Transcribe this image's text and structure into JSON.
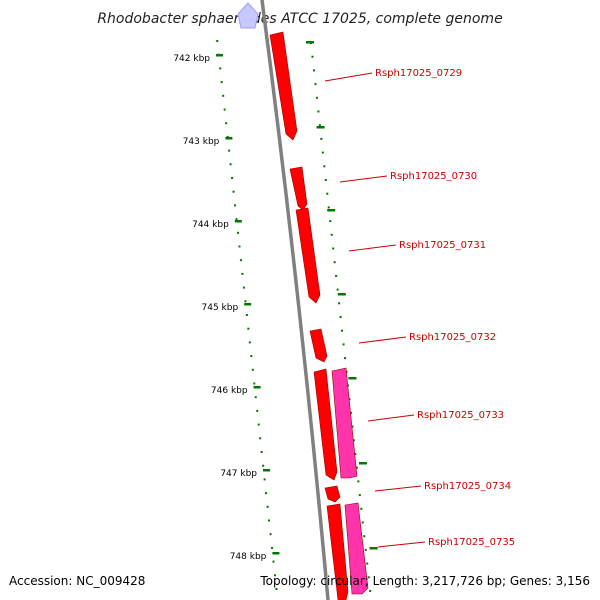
{
  "title": "Rhodobacter sphaeroides ATCC 17025, complete genome",
  "footer": {
    "accession": "Accession: NC_009428",
    "topology": "Topology: circular; Length: 3,217,726 bp; Genes: 3,156"
  },
  "scale_labels": [
    "742 kbp",
    "743 kbp",
    "744 kbp",
    "745 kbp",
    "746 kbp",
    "747 kbp",
    "748 kbp"
  ],
  "genes": [
    {
      "label": "Rsph17025_0729",
      "strand": "forward"
    },
    {
      "label": "Rsph17025_0730",
      "strand": "forward"
    },
    {
      "label": "Rsph17025_0731",
      "strand": "forward"
    },
    {
      "label": "Rsph17025_0732",
      "strand": "forward"
    },
    {
      "label": "Rsph17025_0733",
      "strand": "forward"
    },
    {
      "label": "Rsph17025_0734",
      "strand": "forward"
    },
    {
      "label": "Rsph17025_0735",
      "strand": "forward"
    }
  ],
  "colors": {
    "gene_forward": "#ff0000",
    "gene_other": "#ff33aa",
    "backbone": "#808080",
    "ticks": "#007700",
    "label": "#cc0000"
  }
}
